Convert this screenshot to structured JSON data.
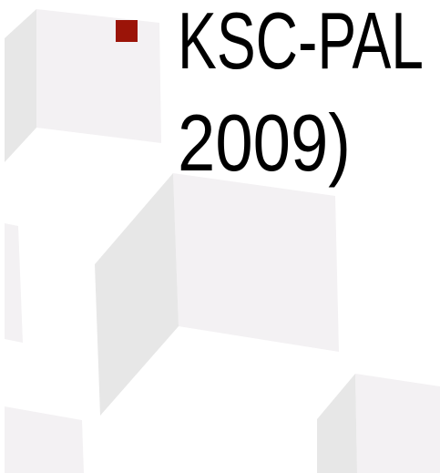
{
  "bullets": [
    {
      "lines": [
        "KSC-PAL",
        "2009)"
      ]
    }
  ]
}
